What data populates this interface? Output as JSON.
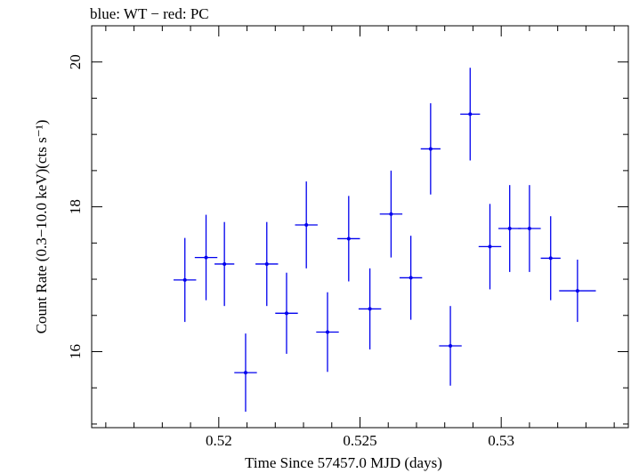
{
  "chart_data": {
    "type": "scatter",
    "title": "blue: WT − red: PC",
    "xlabel": "Time Since 57457.0 MJD (days)",
    "ylabel": "Count Rate (0.3−10.0 keV)(cts s⁻¹)",
    "xlim": [
      0.5155,
      0.5345
    ],
    "ylim": [
      14.95,
      20.5
    ],
    "x_ticks": [
      {
        "value": 0.52,
        "label": "0.52"
      },
      {
        "value": 0.525,
        "label": "0.525"
      },
      {
        "value": 0.53,
        "label": "0.53"
      }
    ],
    "y_ticks": [
      {
        "value": 16,
        "label": "16"
      },
      {
        "value": 18,
        "label": "18"
      },
      {
        "value": 20,
        "label": "20"
      }
    ],
    "x_minor_step": 0.001,
    "y_minor_step": 0.5,
    "grid": false,
    "series": [
      {
        "color": "#0000ee",
        "points": [
          {
            "x": 0.5188,
            "xerr": 0.0004,
            "y": 16.99,
            "yerr": 0.58
          },
          {
            "x": 0.51955,
            "xerr": 0.0004,
            "y": 17.3,
            "yerr": 0.59
          },
          {
            "x": 0.5202,
            "xerr": 0.00035,
            "y": 17.21,
            "yerr": 0.58
          },
          {
            "x": 0.52095,
            "xerr": 0.0004,
            "y": 15.71,
            "yerr": 0.54
          },
          {
            "x": 0.5217,
            "xerr": 0.0004,
            "y": 17.21,
            "yerr": 0.58
          },
          {
            "x": 0.5224,
            "xerr": 0.0004,
            "y": 16.53,
            "yerr": 0.56
          },
          {
            "x": 0.5231,
            "xerr": 0.0004,
            "y": 17.75,
            "yerr": 0.6
          },
          {
            "x": 0.52385,
            "xerr": 0.0004,
            "y": 16.27,
            "yerr": 0.55
          },
          {
            "x": 0.5246,
            "xerr": 0.0004,
            "y": 17.56,
            "yerr": 0.59
          },
          {
            "x": 0.52535,
            "xerr": 0.0004,
            "y": 16.59,
            "yerr": 0.56
          },
          {
            "x": 0.5261,
            "xerr": 0.0004,
            "y": 17.9,
            "yerr": 0.6
          },
          {
            "x": 0.5268,
            "xerr": 0.0004,
            "y": 17.02,
            "yerr": 0.58
          },
          {
            "x": 0.5275,
            "xerr": 0.00035,
            "y": 18.8,
            "yerr": 0.63
          },
          {
            "x": 0.5282,
            "xerr": 0.0004,
            "y": 16.08,
            "yerr": 0.55
          },
          {
            "x": 0.5289,
            "xerr": 0.00035,
            "y": 19.28,
            "yerr": 0.64
          },
          {
            "x": 0.5296,
            "xerr": 0.0004,
            "y": 17.45,
            "yerr": 0.59
          },
          {
            "x": 0.5303,
            "xerr": 0.0004,
            "y": 17.7,
            "yerr": 0.6
          },
          {
            "x": 0.531,
            "xerr": 0.0004,
            "y": 17.7,
            "yerr": 0.6
          },
          {
            "x": 0.53175,
            "xerr": 0.00035,
            "y": 17.29,
            "yerr": 0.58
          },
          {
            "x": 0.5327,
            "xerr": 0.00065,
            "y": 16.84,
            "yerr": 0.43
          }
        ]
      }
    ]
  }
}
